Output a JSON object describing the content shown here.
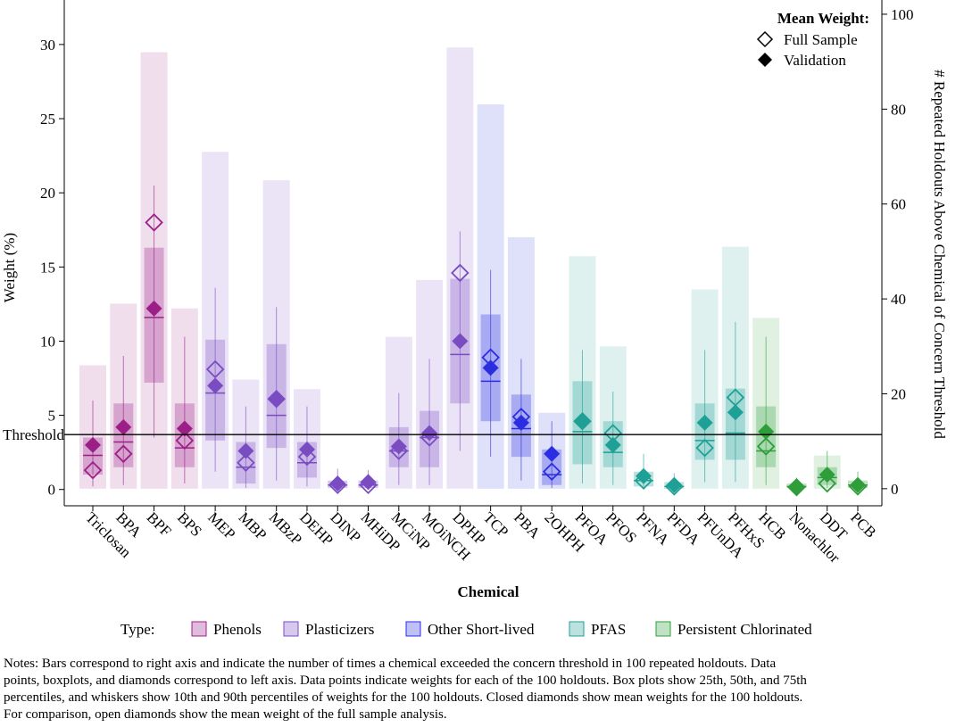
{
  "chart_data": {
    "type": "box-bar",
    "y_label": "Weight (%)",
    "y2_label": "# Repeated Holdouts Above Chemical of Concern Threshold",
    "x_label": "Chemical",
    "ylim": [
      -1.1,
      33
    ],
    "yticks": [
      0,
      5,
      10,
      15,
      20,
      25,
      30
    ],
    "y2lim": [
      -3.6,
      103
    ],
    "y2ticks": [
      0,
      20,
      40,
      60,
      80,
      100
    ],
    "threshold": {
      "label": "Threshold",
      "value": 3.7
    },
    "mean_legend": {
      "title": "Mean Weight:",
      "full": "Full Sample",
      "validation": "Validation"
    },
    "type_legend_title": "Type:",
    "types": [
      {
        "name": "Phenols",
        "color": "#9c1f87",
        "categories": [
          "Triclosan",
          "BPA",
          "BPF",
          "BPS"
        ],
        "counts": [
          26,
          39,
          92,
          38
        ],
        "p10": [
          0.2,
          0.3,
          3.5,
          0.4
        ],
        "q1": [
          1.0,
          1.5,
          7.2,
          1.5
        ],
        "median": [
          2.3,
          3.2,
          11.6,
          2.8
        ],
        "q3": [
          3.5,
          5.8,
          16.3,
          5.8
        ],
        "p90": [
          6.0,
          9.0,
          20.5,
          10.3
        ],
        "full_mean": [
          1.3,
          2.4,
          18.0,
          3.3
        ],
        "validation_mean": [
          3.0,
          4.2,
          12.2,
          4.1
        ]
      },
      {
        "name": "Plasticizers",
        "color": "#7a4cc2",
        "categories": [
          "MEP",
          "MBP",
          "MBzP",
          "DEHP",
          "DINP",
          "MHiDP",
          "MCiNP",
          "MOiNCH",
          "DPHP"
        ],
        "counts": [
          71,
          23,
          65,
          21,
          0,
          0,
          32,
          44,
          93
        ],
        "p10": [
          1.2,
          0.1,
          0.6,
          0.2,
          0,
          0,
          0.3,
          0.3,
          2.6
        ],
        "q1": [
          3.3,
          0.4,
          2.8,
          0.8,
          0.1,
          0.1,
          1.5,
          1.5,
          5.8
        ],
        "median": [
          6.5,
          1.5,
          5.0,
          1.8,
          0.3,
          0.3,
          2.6,
          3.5,
          9.1
        ],
        "q3": [
          10.1,
          3.2,
          9.8,
          3.2,
          0.6,
          0.6,
          4.2,
          5.3,
          14.2
        ],
        "p90": [
          13.6,
          5.6,
          12.3,
          5.6,
          1.4,
          1.3,
          6.5,
          8.8,
          17.4
        ],
        "full_mean": [
          8.1,
          1.8,
          6.1,
          2.2,
          0.3,
          0.3,
          2.6,
          3.5,
          14.6
        ],
        "validation_mean": [
          7.0,
          2.6,
          6.1,
          2.7,
          0.4,
          0.5,
          2.9,
          3.8,
          10.0
        ]
      },
      {
        "name": "Other Short-lived",
        "color": "#2b2de0",
        "categories": [
          "TCP",
          "PBA",
          "2OHPH"
        ],
        "counts": [
          81,
          53,
          16
        ],
        "p10": [
          2.2,
          0.6,
          0.1
        ],
        "q1": [
          4.6,
          2.2,
          0.3
        ],
        "median": [
          7.3,
          4.1,
          1.0
        ],
        "q3": [
          11.8,
          6.4,
          2.7
        ],
        "p90": [
          14.8,
          8.8,
          4.6
        ],
        "full_mean": [
          8.9,
          4.9,
          1.2
        ],
        "validation_mean": [
          8.2,
          4.5,
          2.4
        ]
      },
      {
        "name": "PFAS",
        "color": "#1fa096",
        "categories": [
          "PFOA",
          "PFOS",
          "PFNA",
          "PFDA",
          "PFUnDA",
          "PFHxS"
        ],
        "counts": [
          49,
          30,
          0,
          0,
          42,
          51
        ],
        "p10": [
          0.4,
          0.3,
          0.05,
          0,
          0.5,
          0.5
        ],
        "q1": [
          1.7,
          1.5,
          0.2,
          0.05,
          2.0,
          2.0
        ],
        "median": [
          3.9,
          2.5,
          0.6,
          0.2,
          3.3,
          3.8
        ],
        "q3": [
          7.3,
          4.6,
          1.2,
          0.5,
          5.8,
          6.8
        ],
        "p90": [
          9.4,
          6.6,
          2.4,
          1.1,
          9.4,
          11.3
        ],
        "full_mean": [
          4.6,
          3.8,
          0.6,
          0.2,
          2.8,
          6.2
        ],
        "validation_mean": [
          4.6,
          3.0,
          0.9,
          0.3,
          4.5,
          5.2
        ]
      },
      {
        "name": "Persistent Chlorinated",
        "color": "#2f9e3a",
        "categories": [
          "HCB",
          "Nonachlor",
          "DDT",
          "PCB"
        ],
        "counts": [
          36,
          0,
          7,
          0
        ],
        "p10": [
          0.3,
          0,
          0.1,
          0
        ],
        "q1": [
          1.5,
          0.1,
          0.3,
          0.1
        ],
        "median": [
          2.6,
          0.2,
          0.8,
          0.3
        ],
        "q3": [
          5.6,
          0.4,
          1.5,
          0.6
        ],
        "p90": [
          10.3,
          0.8,
          2.6,
          1.2
        ],
        "full_mean": [
          2.9,
          0.15,
          0.4,
          0.2
        ],
        "validation_mean": [
          3.9,
          0.2,
          1.0,
          0.3
        ]
      }
    ]
  },
  "notes": [
    "Notes: Bars correspond to right axis and indicate the number of times a chemical exceeded the concern threshold in 100 repeated holdouts. Data",
    "points, boxplots, and diamonds correspond to left axis. Data points indicate weights for each of the 100 holdouts. Box plots show 25th, 50th, and 75th",
    "percentiles, and whiskers show 10th and 90th percentiles of weights for the 100 holdouts. Closed diamonds show mean weights for the 100 holdouts.",
    "For comparison, open diamonds show the mean weight of the full sample analysis."
  ]
}
